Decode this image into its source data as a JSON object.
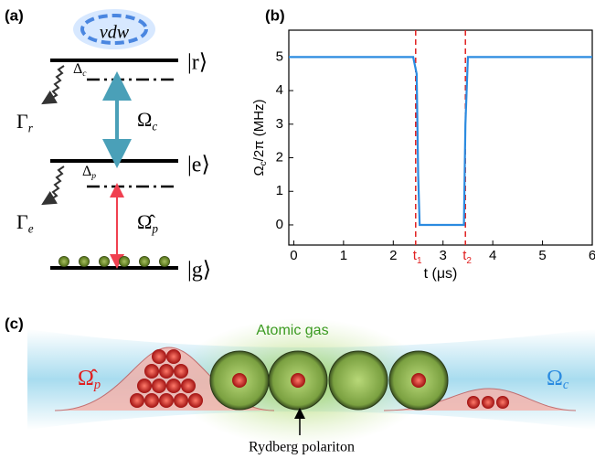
{
  "panel_a": {
    "label": "(a)",
    "vdw": "vdw",
    "delta_c": {
      "text": "Δ",
      "sub": "c"
    },
    "ket_r": "|r⟩",
    "gamma_r": {
      "text": "Γ",
      "sub": "r"
    },
    "omega_c": {
      "text": "Ω",
      "sub": "c"
    },
    "ket_e": "|e⟩",
    "delta_p": {
      "text": "Δ",
      "sub": "p"
    },
    "gamma_e": {
      "text": "Γ",
      "sub": "e"
    },
    "omega_p": {
      "text": "Ω̂",
      "sub": "p"
    },
    "ket_g": "|g⟩"
  },
  "chart_data": {
    "type": "line",
    "label": "(b)",
    "x": [
      -0.1,
      2.4,
      2.47,
      2.5,
      2.53,
      3.42,
      3.45,
      3.5,
      6
    ],
    "values": [
      5,
      5,
      4.5,
      1.5,
      0,
      0,
      3,
      5,
      5
    ],
    "color": "#2b8be0",
    "xlim": [
      -0.1,
      6
    ],
    "ylim": [
      -0.6,
      5.8
    ],
    "xticks": [
      0,
      1,
      2,
      3,
      4,
      5,
      6
    ],
    "yticks": [
      0,
      1,
      2,
      3,
      4,
      5
    ],
    "x_label": "t (μs)",
    "y_label": {
      "text": "Ω",
      "sub": "c",
      "rest": "/2π (MHz)"
    },
    "markers": [
      {
        "value": 2.45,
        "label": "t",
        "subscript": "1"
      },
      {
        "value": 3.45,
        "label": "t",
        "subscript": "2"
      }
    ],
    "marker_color": "#e02020"
  },
  "panel_c": {
    "label": "(c)",
    "atomic_gas": "Atomic gas",
    "omega_p": {
      "text": "Ω̂",
      "sub": "p"
    },
    "omega_c": {
      "text": "Ω",
      "sub": "c"
    },
    "polariton": "Rydberg polariton"
  }
}
